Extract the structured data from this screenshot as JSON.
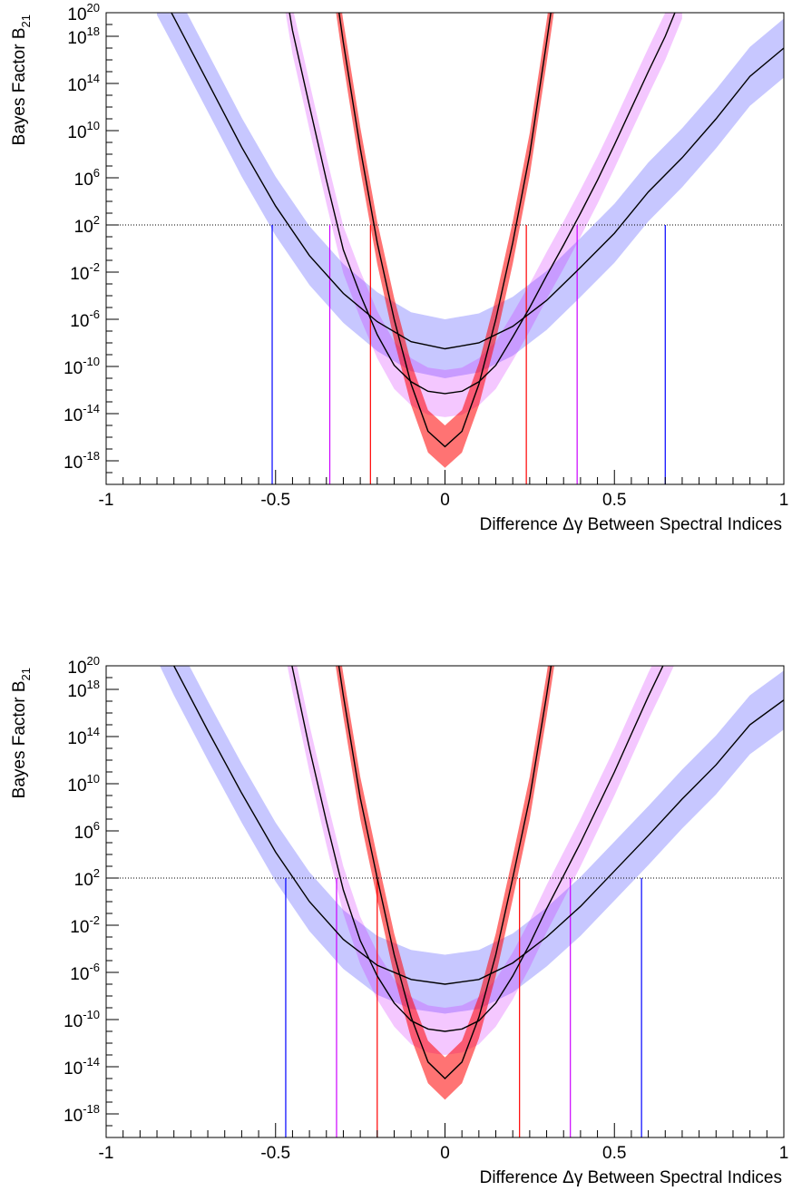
{
  "chart_data": [
    {
      "type": "line",
      "xlabel": "Difference Δγ Between Spectral Indices",
      "ylabel": "Bayes Factor B21",
      "ylabel_main": "Bayes Factor B",
      "ylabel_sub": "21",
      "xlim": [
        -1.0,
        1.0
      ],
      "ylim_log10": [
        -20,
        20
      ],
      "y_scale": "log",
      "x_ticks": [
        -1,
        -0.5,
        0,
        0.5,
        1
      ],
      "x_tick_labels": [
        "-1",
        "-0.5",
        "0",
        "0.5",
        "1"
      ],
      "y_ticks_log10": [
        -18,
        -14,
        -10,
        -6,
        -2,
        2,
        6,
        10,
        14,
        18,
        20
      ],
      "y_tick_labels": [
        "10",
        "10",
        "10",
        "10",
        "10",
        "10",
        "10",
        "10",
        "10",
        "10",
        "10"
      ],
      "y_tick_exponents": [
        "-18",
        "-14",
        "-10",
        "-6",
        "-2",
        "2",
        "6",
        "10",
        "14",
        "18",
        "20"
      ],
      "threshold_log10": 2,
      "series": [
        {
          "color": "#0000ff",
          "min_x": 0.0,
          "min_log10": -8.5,
          "band_log10": 2.5,
          "x_left": -0.51,
          "x_right": 0.65,
          "x": [
            -0.85,
            -0.8,
            -0.7,
            -0.6,
            -0.5,
            -0.4,
            -0.3,
            -0.2,
            -0.1,
            0.0,
            0.1,
            0.2,
            0.3,
            0.4,
            0.5,
            0.6,
            0.7,
            0.8,
            0.9,
            1.0
          ],
          "y_log10": [
            22.3,
            19.6,
            14.1,
            8.6,
            3.6,
            -0.6,
            -3.8,
            -6.2,
            -7.9,
            -8.5,
            -8.0,
            -6.6,
            -4.4,
            -1.6,
            1.3,
            4.8,
            7.7,
            11.0,
            14.6,
            17.0
          ]
        },
        {
          "color": "#cc00ff",
          "min_x": 0.0,
          "min_log10": -12.3,
          "band_log10": 2.0,
          "x_left": -0.34,
          "x_right": 0.39,
          "x": [
            -0.5,
            -0.45,
            -0.4,
            -0.35,
            -0.3,
            -0.25,
            -0.2,
            -0.15,
            -0.1,
            -0.05,
            0.0,
            0.05,
            0.1,
            0.15,
            0.2,
            0.25,
            0.3,
            0.35,
            0.4,
            0.45,
            0.5,
            0.55,
            0.6,
            0.65,
            0.7
          ],
          "y_log10": [
            27.0,
            18.5,
            12.1,
            5.8,
            -0.1,
            -3.9,
            -7.3,
            -9.9,
            -11.3,
            -12.1,
            -12.3,
            -12.1,
            -11.3,
            -9.9,
            -7.5,
            -5.0,
            -2.3,
            0.3,
            3.0,
            5.8,
            8.8,
            11.9,
            15.0,
            18.0,
            21.5
          ]
        },
        {
          "color": "#ff0000",
          "min_x": 0.0,
          "min_log10": -16.8,
          "band_log10": 1.8,
          "x_left": -0.22,
          "x_right": 0.24,
          "x": [
            -0.35,
            -0.3,
            -0.25,
            -0.2,
            -0.15,
            -0.1,
            -0.05,
            0.0,
            0.05,
            0.1,
            0.15,
            0.2,
            0.25,
            0.3,
            0.35
          ],
          "y_log10": [
            27.5,
            17.5,
            8.5,
            0.5,
            -6.0,
            -11.5,
            -15.5,
            -16.8,
            -15.5,
            -11.5,
            -6.0,
            0.5,
            8.0,
            17.5,
            27.5
          ]
        }
      ]
    },
    {
      "type": "line",
      "xlabel": "Difference Δγ Between Spectral Indices",
      "ylabel": "Bayes Factor B21",
      "ylabel_main": "Bayes Factor B",
      "ylabel_sub": "21",
      "xlim": [
        -1.0,
        1.0
      ],
      "ylim_log10": [
        -20,
        20
      ],
      "y_scale": "log",
      "x_ticks": [
        -1,
        -0.5,
        0,
        0.5,
        1
      ],
      "x_tick_labels": [
        "-1",
        "-0.5",
        "0",
        "0.5",
        "1"
      ],
      "y_ticks_log10": [
        -18,
        -14,
        -10,
        -6,
        -2,
        2,
        6,
        10,
        14,
        18,
        20
      ],
      "y_tick_labels": [
        "10",
        "10",
        "10",
        "10",
        "10",
        "10",
        "10",
        "10",
        "10",
        "10",
        "10"
      ],
      "y_tick_exponents": [
        "-18",
        "-14",
        "-10",
        "-6",
        "-2",
        "2",
        "6",
        "10",
        "14",
        "18",
        "20"
      ],
      "threshold_log10": 2,
      "series": [
        {
          "color": "#0000ff",
          "min_x": 0.0,
          "min_log10": -7.0,
          "band_log10": 2.5,
          "x_left": -0.47,
          "x_right": 0.58,
          "x": [
            -0.85,
            -0.8,
            -0.7,
            -0.6,
            -0.5,
            -0.4,
            -0.3,
            -0.2,
            -0.1,
            0.0,
            0.1,
            0.2,
            0.3,
            0.4,
            0.5,
            0.6,
            0.7,
            0.8,
            0.9,
            1.0
          ],
          "y_log10": [
            23.0,
            20.0,
            14.5,
            9.2,
            4.2,
            0.0,
            -3.2,
            -5.4,
            -6.6,
            -7.0,
            -6.6,
            -5.2,
            -3.0,
            -0.4,
            2.6,
            5.6,
            8.7,
            11.6,
            15.0,
            17.1
          ]
        },
        {
          "color": "#cc00ff",
          "min_x": 0.0,
          "min_log10": -11.0,
          "band_log10": 2.0,
          "x_left": -0.32,
          "x_right": 0.37,
          "x": [
            -0.5,
            -0.45,
            -0.4,
            -0.35,
            -0.3,
            -0.25,
            -0.2,
            -0.15,
            -0.1,
            -0.05,
            0.0,
            0.05,
            0.1,
            0.15,
            0.2,
            0.25,
            0.3,
            0.35,
            0.4,
            0.45,
            0.5,
            0.55,
            0.6,
            0.65,
            0.7
          ],
          "y_log10": [
            27.0,
            19.8,
            13.0,
            6.8,
            1.0,
            -3.3,
            -6.3,
            -8.6,
            -10.1,
            -10.8,
            -11.0,
            -10.8,
            -10.1,
            -8.6,
            -6.3,
            -3.6,
            -0.6,
            2.2,
            5.0,
            8.0,
            11.0,
            14.2,
            17.4,
            20.4,
            23.5
          ]
        },
        {
          "color": "#ff0000",
          "min_x": 0.0,
          "min_log10": -15.0,
          "band_log10": 1.8,
          "x_left": -0.2,
          "x_right": 0.22,
          "x": [
            -0.35,
            -0.3,
            -0.25,
            -0.2,
            -0.15,
            -0.1,
            -0.05,
            0.0,
            0.05,
            0.1,
            0.15,
            0.2,
            0.25,
            0.3,
            0.35
          ],
          "y_log10": [
            27.0,
            17.5,
            8.8,
            2.0,
            -4.5,
            -9.8,
            -13.6,
            -15.0,
            -13.6,
            -9.8,
            -4.5,
            2.0,
            8.8,
            17.5,
            27.0
          ]
        }
      ]
    }
  ]
}
